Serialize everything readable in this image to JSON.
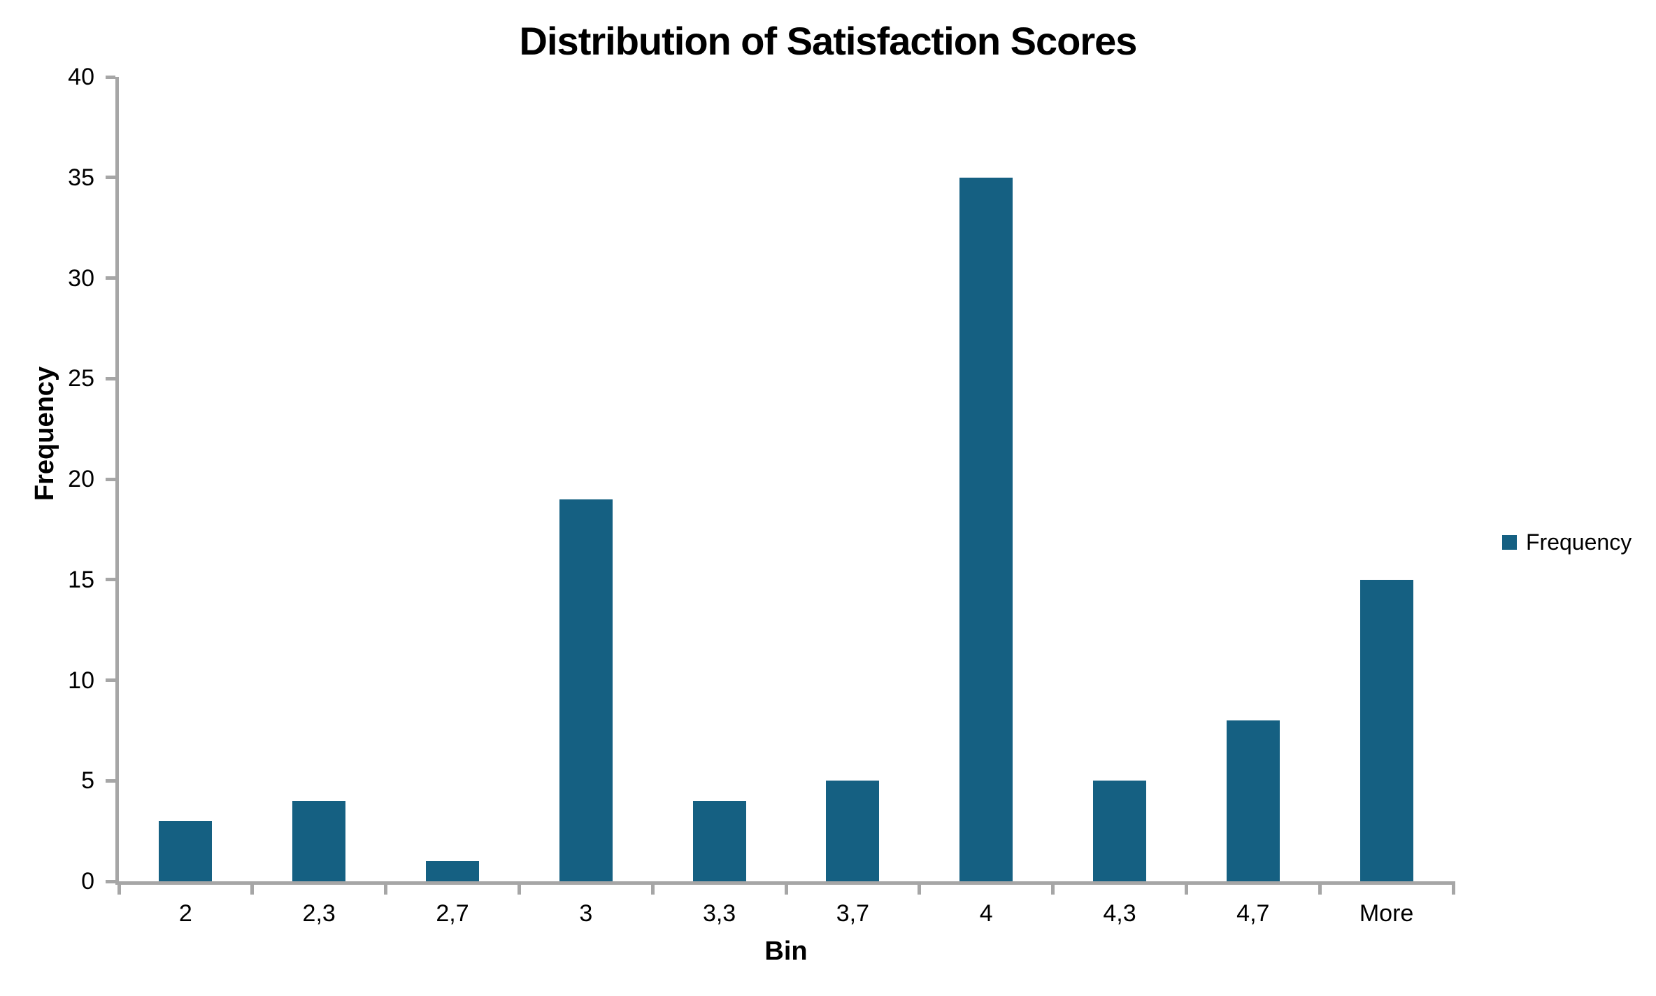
{
  "colors": {
    "bar": "#156082",
    "axis": "#A6A6A6",
    "text": "#000000",
    "background": "#FFFFFF"
  },
  "legend": {
    "label": "Frequency"
  },
  "chart_data": {
    "type": "bar",
    "title": "Distribution of Satisfaction Scores",
    "categories": [
      "2",
      "2,3",
      "2,7",
      "3",
      "3,3",
      "3,7",
      "4",
      "4,3",
      "4,7",
      "More"
    ],
    "values": [
      3,
      4,
      1,
      19,
      4,
      5,
      35,
      5,
      8,
      15
    ],
    "series_name": "Frequency",
    "xlabel": "Bin",
    "ylabel": "Frequency",
    "ylim": [
      0,
      40
    ],
    "ytick_step": 5,
    "grid": false,
    "legend_position": "right",
    "bar_fill_ratio": 0.4
  }
}
